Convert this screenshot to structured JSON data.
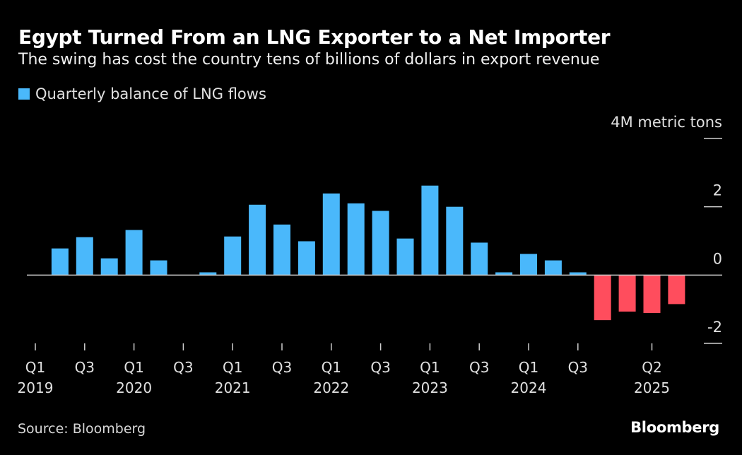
{
  "header": {
    "title": "Egypt Turned From an LNG Exporter to a Net Importer",
    "subtitle": "The swing has cost the country tens of billions of dollars in export revenue"
  },
  "footer": {
    "source": "Source: Bloomberg",
    "brand": "Bloomberg"
  },
  "colors": {
    "positive": "#4ab8fb",
    "negative": "#ff4d5d",
    "background": "#000000",
    "axis": "#cccccc"
  },
  "chart_data": {
    "type": "bar",
    "title": "Egypt Turned From an LNG Exporter to a Net Importer",
    "subtitle": "The swing has cost the country tens of billions of dollars in export revenue",
    "xlabel": "",
    "ylabel": "4M metric tons",
    "ylim": [
      -2,
      4
    ],
    "yticks": [
      4,
      2,
      0,
      -2
    ],
    "ytick_labels": [
      "4M metric tons",
      "2",
      "0",
      "-2"
    ],
    "grid": false,
    "legend": {
      "placement": "top-left",
      "entries": [
        "Quarterly balance of LNG flows"
      ]
    },
    "categories": [
      "2019 Q1",
      "2019 Q2",
      "2019 Q3",
      "2019 Q4",
      "2020 Q1",
      "2020 Q2",
      "2020 Q3",
      "2020 Q4",
      "2021 Q1",
      "2021 Q2",
      "2021 Q3",
      "2021 Q4",
      "2022 Q1",
      "2022 Q2",
      "2022 Q3",
      "2022 Q4",
      "2023 Q1",
      "2023 Q2",
      "2023 Q3",
      "2023 Q4",
      "2024 Q1",
      "2024 Q2",
      "2024 Q3",
      "2024 Q4",
      "2025 Q1",
      "2025 Q2",
      "2025 Q3"
    ],
    "series": [
      {
        "name": "Quarterly balance of LNG flows",
        "values": [
          0,
          0.78,
          1.11,
          0.49,
          1.32,
          0.43,
          0,
          0.08,
          1.13,
          2.06,
          1.48,
          0.99,
          2.39,
          2.1,
          1.88,
          1.07,
          2.62,
          2.0,
          0.95,
          0.08,
          0.62,
          0.43,
          0.08,
          -1.32,
          -1.07,
          -1.11,
          -0.85
        ]
      }
    ],
    "xticks": [
      {
        "index": 0,
        "quarter": "Q1",
        "year": "2019"
      },
      {
        "index": 2,
        "quarter": "Q3",
        "year": ""
      },
      {
        "index": 4,
        "quarter": "Q1",
        "year": "2020"
      },
      {
        "index": 6,
        "quarter": "Q3",
        "year": ""
      },
      {
        "index": 8,
        "quarter": "Q1",
        "year": "2021"
      },
      {
        "index": 10,
        "quarter": "Q3",
        "year": ""
      },
      {
        "index": 12,
        "quarter": "Q1",
        "year": "2022"
      },
      {
        "index": 14,
        "quarter": "Q3",
        "year": ""
      },
      {
        "index": 16,
        "quarter": "Q1",
        "year": "2023"
      },
      {
        "index": 18,
        "quarter": "Q3",
        "year": ""
      },
      {
        "index": 20,
        "quarter": "Q1",
        "year": "2024"
      },
      {
        "index": 22,
        "quarter": "Q3",
        "year": ""
      },
      {
        "index": 25,
        "quarter": "Q2",
        "year": "2025"
      }
    ]
  }
}
